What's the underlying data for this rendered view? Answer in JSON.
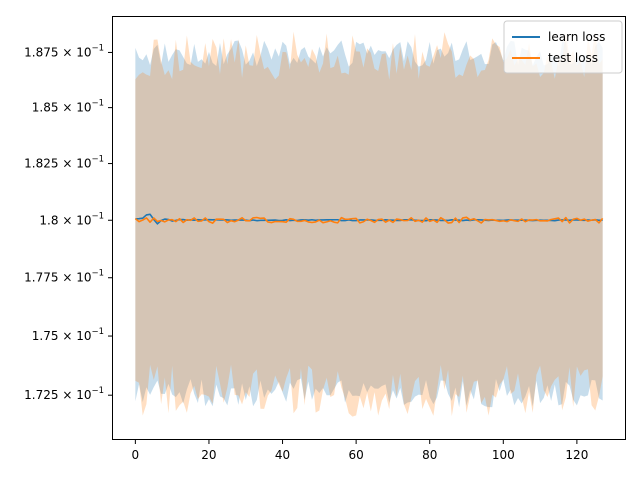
{
  "chart_data": {
    "type": "line",
    "title": "",
    "xlabel": "",
    "ylabel": "",
    "xlim": [
      -6.35,
      133.35
    ],
    "ylim": [
      0.17063,
      0.18917
    ],
    "y_scale": "log",
    "x_ticks": [
      0,
      20,
      40,
      60,
      80,
      100,
      120
    ],
    "x_tick_labels": [
      "0",
      "20",
      "40",
      "60",
      "80",
      "100",
      "120"
    ],
    "y_ticks": [
      0.1725,
      0.175,
      0.1775,
      0.18,
      0.1825,
      0.185,
      0.1875
    ],
    "y_tick_labels": [
      {
        "mantissa": "1.725",
        "exponent": "−1"
      },
      {
        "mantissa": "1.75",
        "exponent": "−1"
      },
      {
        "mantissa": "1.775",
        "exponent": "−1"
      },
      {
        "mantissa": "1.8",
        "exponent": "−1"
      },
      {
        "mantissa": "1.825",
        "exponent": "−1"
      },
      {
        "mantissa": "1.85",
        "exponent": "−1"
      },
      {
        "mantissa": "1.875",
        "exponent": "−1"
      }
    ],
    "legend": {
      "position": "top-right"
    },
    "grid": false,
    "x_range": [
      0,
      127
    ],
    "series": [
      {
        "name": "learn loss",
        "color": "#1f77b4",
        "band_color": "#1f77b4",
        "mean_points": [
          [
            0,
            0.18005
          ],
          [
            2,
            0.1801
          ],
          [
            3,
            0.18022
          ],
          [
            4,
            0.18025
          ],
          [
            5,
            0.18005
          ],
          [
            6,
            0.17985
          ],
          [
            7,
            0.17998
          ],
          [
            8,
            0.18005
          ],
          [
            10,
            0.17998
          ],
          [
            12,
            0.18002
          ],
          [
            15,
            0.18
          ],
          [
            20,
            0.18002
          ],
          [
            25,
            0.18001
          ],
          [
            30,
            0.18
          ],
          [
            40,
            0.18
          ],
          [
            50,
            0.18001
          ],
          [
            60,
            0.18
          ],
          [
            70,
            0.18001
          ],
          [
            80,
            0.18
          ],
          [
            90,
            0.18
          ],
          [
            100,
            0.18001
          ],
          [
            110,
            0.18
          ],
          [
            120,
            0.18
          ],
          [
            127,
            0.18
          ]
        ],
        "band_upper_base": 0.18745,
        "band_lower_base": 0.1726,
        "band_noise": 0.0006
      },
      {
        "name": "test loss",
        "color": "#ff7f0e",
        "band_color": "#ff7f0e",
        "mean_base": 0.18,
        "mean_noise": 0.00013,
        "band_upper_base": 0.18735,
        "band_lower_base": 0.1727,
        "band_noise": 0.0011
      }
    ]
  }
}
